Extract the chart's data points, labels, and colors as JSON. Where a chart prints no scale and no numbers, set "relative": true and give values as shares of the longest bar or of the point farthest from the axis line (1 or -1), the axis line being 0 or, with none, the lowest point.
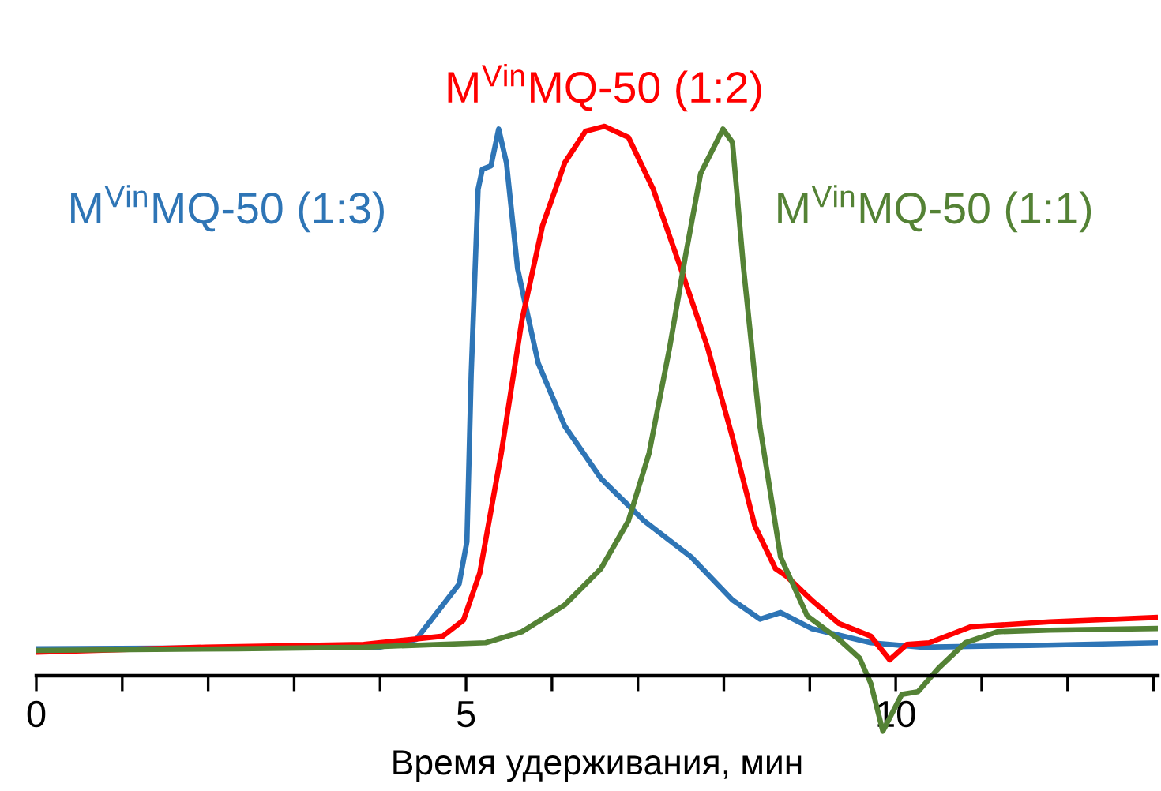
{
  "chart_data": {
    "type": "line",
    "relative": true,
    "xlabel": "Время удерживания, мин",
    "xlim": [
      0,
      13.05
    ],
    "xticks": [
      0,
      {
        "value": 1,
        "label": null
      },
      {
        "value": 2,
        "label": null
      },
      {
        "value": 3,
        "label": null
      },
      {
        "value": 4,
        "label": null
      },
      5,
      {
        "value": 6,
        "label": null
      },
      {
        "value": 7,
        "label": null
      },
      {
        "value": 8,
        "label": null
      },
      {
        "value": 9,
        "label": null
      },
      10,
      {
        "value": 11,
        "label": null
      },
      {
        "value": 12,
        "label": null
      },
      {
        "value": 13,
        "label": null
      }
    ],
    "tick_labels": "x",
    "grid": false,
    "legend": false,
    "marker": "none",
    "line_style": "solid",
    "series": [
      {
        "name": "M$^{Vin}$MQ-50 (1:3)",
        "color": "#2e75b6",
        "x": [
          0,
          4.0,
          4.42,
          4.92,
          5.01,
          5.06,
          5.14,
          5.19,
          5.29,
          5.38,
          5.47,
          5.6,
          5.84,
          6.15,
          6.57,
          7.07,
          7.62,
          8.1,
          8.42,
          8.66,
          9.02,
          9.71,
          10.31,
          11.55,
          13.05
        ],
        "values": [
          0.049,
          0.052,
          0.066,
          0.167,
          0.244,
          0.549,
          0.885,
          0.922,
          0.928,
          0.995,
          0.934,
          0.741,
          0.569,
          0.454,
          0.359,
          0.282,
          0.216,
          0.138,
          0.103,
          0.115,
          0.086,
          0.06,
          0.052,
          0.055,
          0.06
        ]
      },
      {
        "name": "M$^{Vin}$MQ-50 (1:2)",
        "color": "#ff0000",
        "x": [
          0,
          1.97,
          3.81,
          4.73,
          4.97,
          5.16,
          5.41,
          5.65,
          5.89,
          6.15,
          6.39,
          6.61,
          6.89,
          7.18,
          7.5,
          7.81,
          8.1,
          8.36,
          8.6,
          8.73,
          9.02,
          9.34,
          9.71,
          9.93,
          10.13,
          10.39,
          10.87,
          11.79,
          13.02
        ],
        "values": [
          0.043,
          0.052,
          0.057,
          0.072,
          0.101,
          0.187,
          0.405,
          0.647,
          0.819,
          0.934,
          0.991,
          1.0,
          0.98,
          0.885,
          0.741,
          0.598,
          0.434,
          0.273,
          0.195,
          0.181,
          0.138,
          0.095,
          0.072,
          0.029,
          0.057,
          0.06,
          0.089,
          0.098,
          0.106
        ]
      },
      {
        "name": "M$^{Vin}$MQ-50 (1:1)",
        "color": "#548235",
        "x": [
          0,
          2.34,
          3.81,
          5.23,
          5.65,
          6.15,
          6.57,
          6.89,
          7.13,
          7.37,
          7.55,
          7.73,
          7.99,
          8.1,
          8.23,
          8.42,
          8.66,
          8.97,
          9.34,
          9.58,
          9.71,
          9.85,
          10.07,
          10.26,
          10.5,
          10.81,
          11.18,
          11.79,
          13.02
        ],
        "values": [
          0.046,
          0.049,
          0.052,
          0.06,
          0.08,
          0.129,
          0.195,
          0.282,
          0.405,
          0.598,
          0.761,
          0.914,
          0.995,
          0.971,
          0.741,
          0.454,
          0.216,
          0.109,
          0.066,
          0.032,
          -0.014,
          -0.101,
          -0.034,
          -0.029,
          0.014,
          0.06,
          0.08,
          0.083,
          0.086
        ]
      }
    ]
  }
}
